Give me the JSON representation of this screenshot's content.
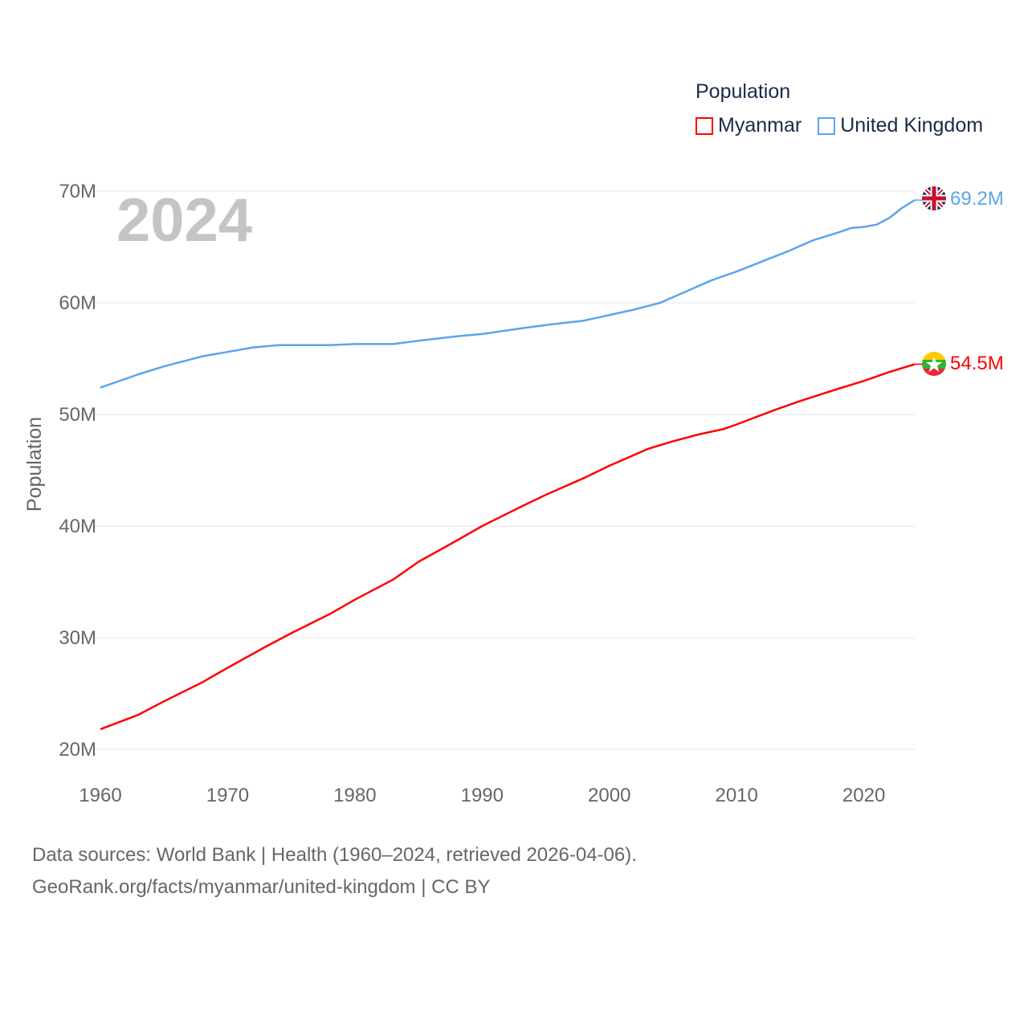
{
  "chart_data": {
    "type": "line",
    "year_label": "2024",
    "ylabel": "Population",
    "legend_title": "Population",
    "legend_placement": "top-right",
    "xlim": [
      1960,
      2024
    ],
    "ylim": [
      20,
      70
    ],
    "x_ticks": [
      "1960",
      "1970",
      "1980",
      "1990",
      "2000",
      "2010",
      "2020"
    ],
    "y_ticks": [
      {
        "v": 20,
        "label": "20M"
      },
      {
        "v": 30,
        "label": "30M"
      },
      {
        "v": 40,
        "label": "40M"
      },
      {
        "v": 50,
        "label": "50M"
      },
      {
        "v": 60,
        "label": "60M"
      },
      {
        "v": 70,
        "label": "70M"
      }
    ],
    "grid": true,
    "series": [
      {
        "name": "Myanmar",
        "color": "#ff0000",
        "end_label": "54.5M",
        "flag": "myanmar-flag",
        "x": [
          1960,
          1963,
          1965,
          1968,
          1970,
          1973,
          1975,
          1978,
          1980,
          1983,
          1985,
          1988,
          1990,
          1993,
          1995,
          1998,
          2000,
          2003,
          2005,
          2007,
          2009,
          2010,
          2013,
          2015,
          2018,
          2020,
          2022,
          2024
        ],
        "y": [
          21.8,
          23.1,
          24.3,
          26.0,
          27.3,
          29.2,
          30.4,
          32.1,
          33.4,
          35.2,
          36.8,
          38.7,
          40.0,
          41.7,
          42.8,
          44.3,
          45.4,
          46.9,
          47.6,
          48.2,
          48.7,
          49.1,
          50.4,
          51.2,
          52.3,
          53.0,
          53.8,
          54.5
        ]
      },
      {
        "name": "United Kingdom",
        "color": "#5aa5ea",
        "end_label": "69.2M",
        "flag": "united-kingdom-flag",
        "x": [
          1960,
          1963,
          1965,
          1968,
          1970,
          1972,
          1974,
          1976,
          1978,
          1980,
          1983,
          1985,
          1988,
          1990,
          1993,
          1995,
          1998,
          2000,
          2002,
          2004,
          2006,
          2008,
          2010,
          2012,
          2014,
          2016,
          2018,
          2019,
          2020,
          2021,
          2022,
          2023,
          2024
        ],
        "y": [
          52.4,
          53.6,
          54.3,
          55.2,
          55.6,
          56.0,
          56.2,
          56.2,
          56.2,
          56.3,
          56.3,
          56.6,
          57.0,
          57.2,
          57.7,
          58.0,
          58.4,
          58.9,
          59.4,
          60.0,
          61.0,
          62.0,
          62.8,
          63.7,
          64.6,
          65.6,
          66.3,
          66.7,
          66.8,
          67.0,
          67.6,
          68.5,
          69.2
        ]
      }
    ]
  },
  "source": {
    "line1": "Data sources: World Bank | Health (1960–2024, retrieved 2026-04-06).",
    "line2": "GeoRank.org/facts/myanmar/united-kingdom | CC BY"
  }
}
